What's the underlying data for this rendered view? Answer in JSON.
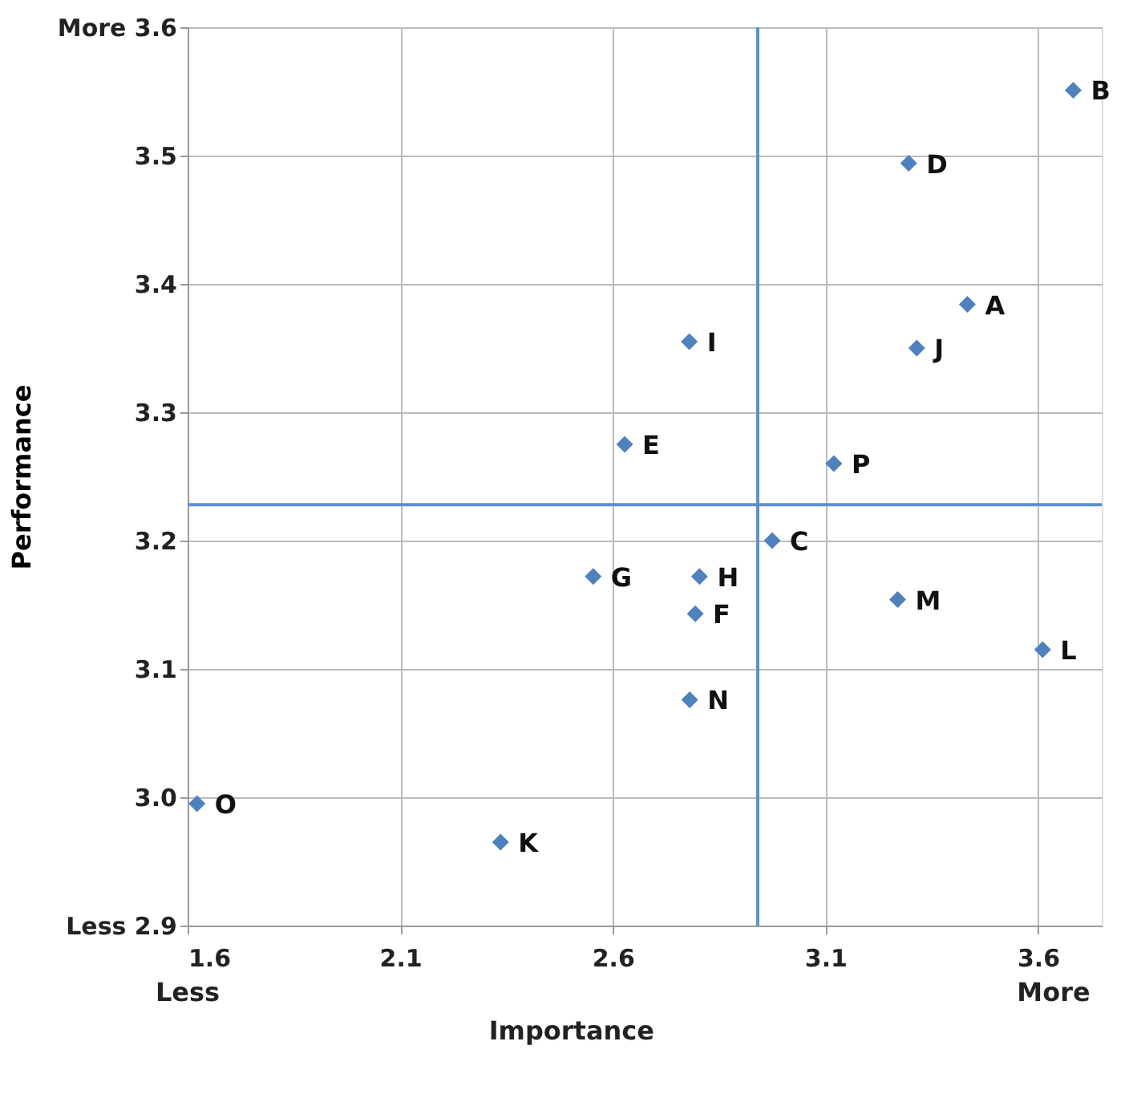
{
  "chart_data": {
    "type": "scatter",
    "xlabel": "Importance",
    "ylabel": "Performance",
    "x": [
      3.683,
      3.296,
      3.434,
      3.315,
      2.78,
      2.628,
      3.12,
      2.975,
      2.554,
      2.804,
      2.794,
      3.27,
      3.611,
      2.781,
      1.622,
      2.336
    ],
    "series": [
      {
        "color": "#4f81bd",
        "values": [
          3.551,
          3.494,
          3.384,
          3.35,
          3.355,
          3.275,
          3.26,
          3.2,
          3.172,
          3.172,
          3.143,
          3.154,
          3.115,
          3.076,
          2.995,
          2.965
        ]
      }
    ],
    "marker": "diamond",
    "xlim": [
      1.6,
      3.75
    ],
    "ylim": [
      2.9,
      3.6
    ],
    "xticks": [
      1.6,
      2.1,
      2.6,
      3.1,
      3.6
    ],
    "yticks": [
      {
        "value": 2.9,
        "label": "Less 2.9"
      },
      {
        "value": 3,
        "label": "3.0"
      },
      3.1,
      3.2,
      3.3,
      3.4,
      3.5,
      {
        "value": 3.6,
        "label": "More 3.6"
      }
    ],
    "grid": true,
    "ref_lines": [
      {
        "axis": "x",
        "value": 2.941,
        "color": "#5b8fd0"
      },
      {
        "axis": "y",
        "value": 3.228,
        "color": "#5b8fd0"
      }
    ],
    "annotations": [
      {
        "text": "B",
        "x": 3.683,
        "y": 3.551
      },
      {
        "text": "D",
        "x": 3.296,
        "y": 3.494
      },
      {
        "text": "A",
        "x": 3.434,
        "y": 3.384
      },
      {
        "text": "J",
        "x": 3.315,
        "y": 3.35
      },
      {
        "text": "I",
        "x": 2.78,
        "y": 3.355
      },
      {
        "text": "E",
        "x": 2.628,
        "y": 3.275
      },
      {
        "text": "P",
        "x": 3.12,
        "y": 3.26
      },
      {
        "text": "C",
        "x": 2.975,
        "y": 3.2
      },
      {
        "text": "G",
        "x": 2.554,
        "y": 3.172
      },
      {
        "text": "H",
        "x": 2.804,
        "y": 3.172
      },
      {
        "text": "F",
        "x": 2.794,
        "y": 3.143
      },
      {
        "text": "M",
        "x": 3.27,
        "y": 3.154
      },
      {
        "text": "L",
        "x": 3.611,
        "y": 3.115
      },
      {
        "text": "N",
        "x": 2.781,
        "y": 3.076
      },
      {
        "text": "O",
        "x": 1.622,
        "y": 2.995
      },
      {
        "text": "K",
        "x": 2.336,
        "y": 2.965
      },
      "Less",
      "More"
    ]
  }
}
